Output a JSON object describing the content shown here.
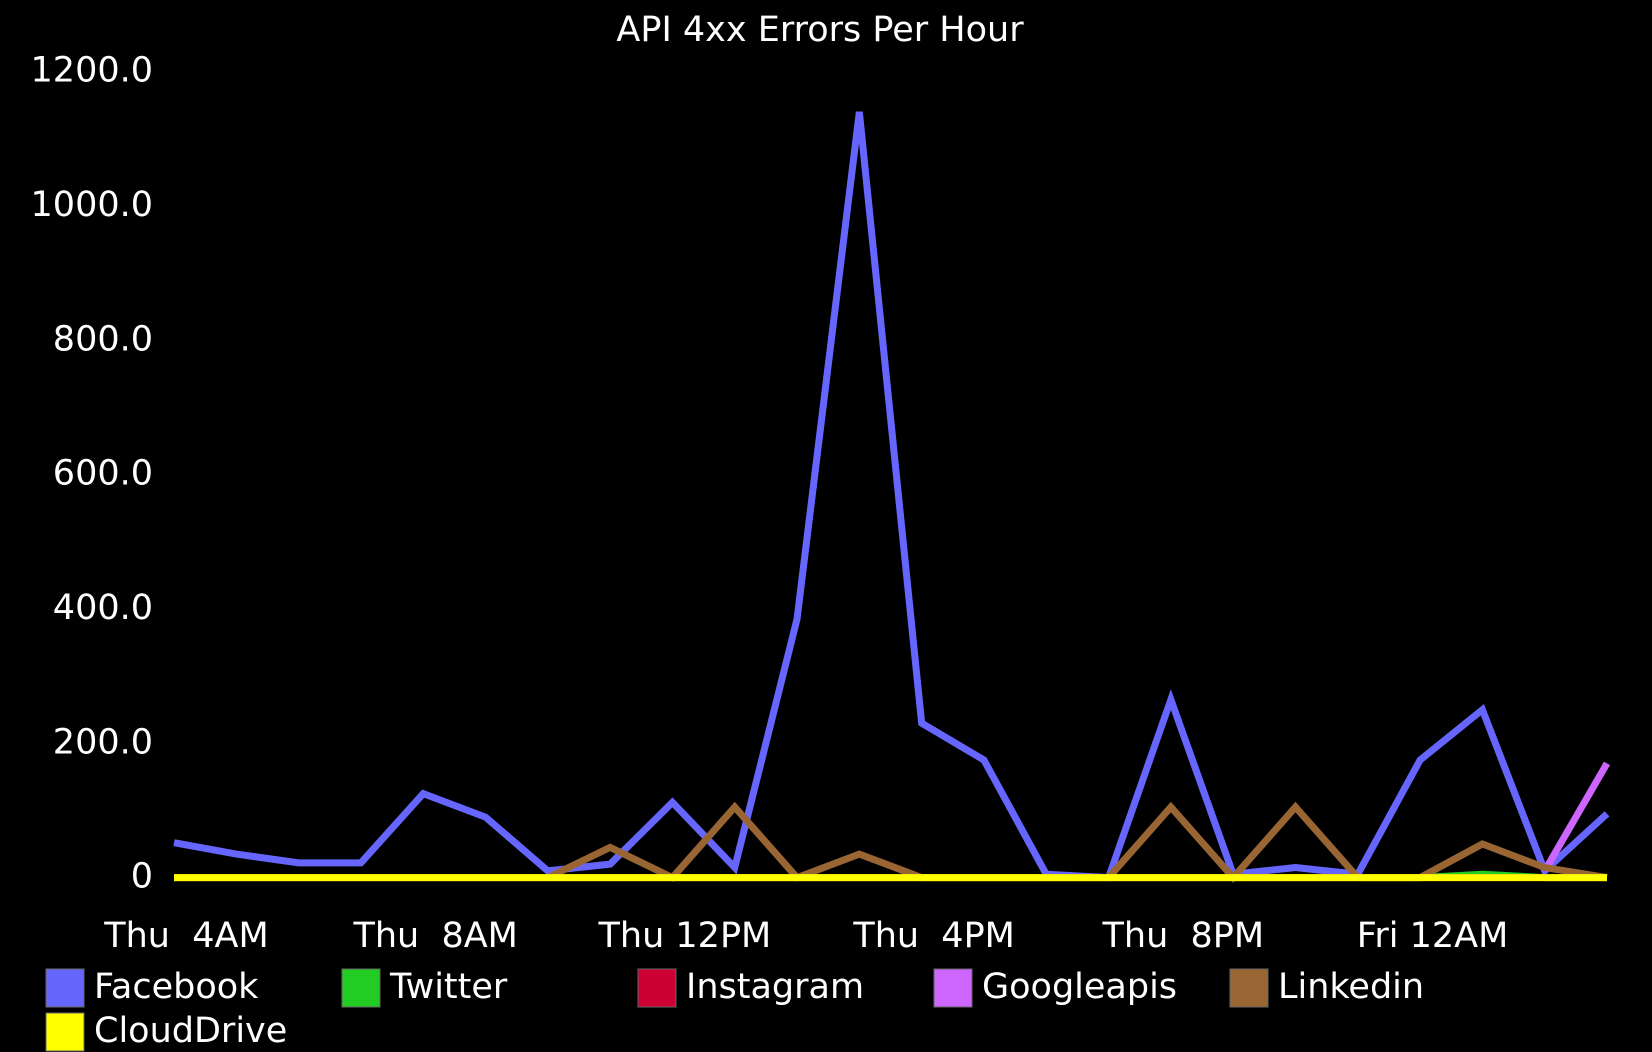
{
  "chart_data": {
    "type": "line",
    "title": "API 4xx Errors Per Hour",
    "x": [
      3.8,
      4.8,
      5.8,
      6.8,
      7.8,
      8.8,
      9.8,
      10.8,
      11.8,
      12.8,
      13.8,
      14.8,
      15.8,
      16.8,
      17.8,
      18.8,
      19.8,
      20.8,
      21.8,
      22.8,
      23.8,
      24.8,
      25.8,
      26.8
    ],
    "xlim": [
      3.8,
      26.8
    ],
    "xticks": [
      {
        "value": 4,
        "label": "Thu  4AM"
      },
      {
        "value": 8,
        "label": "Thu  8AM"
      },
      {
        "value": 12,
        "label": "Thu 12PM"
      },
      {
        "value": 16,
        "label": "Thu  4PM"
      },
      {
        "value": 20,
        "label": "Thu  8PM"
      },
      {
        "value": 24,
        "label": "Fri 12AM"
      }
    ],
    "ylim": [
      0,
      1200
    ],
    "yticks": [
      0,
      {
        "value": 200,
        "label": "200.0"
      },
      {
        "value": 400,
        "label": "400.0"
      },
      {
        "value": 600,
        "label": "600.0"
      },
      {
        "value": 800,
        "label": "800.0"
      },
      {
        "value": 1000,
        "label": "1000.0"
      },
      {
        "value": 1200,
        "label": "1200.0"
      }
    ],
    "series": [
      {
        "name": "Facebook",
        "color": "#6666ff",
        "values": [
          52,
          35,
          22,
          22,
          125,
          90,
          10,
          20,
          112,
          15,
          385,
          1140,
          230,
          175,
          5,
          0,
          265,
          5,
          15,
          5,
          175,
          250,
          10,
          95
        ]
      },
      {
        "name": "Twitter",
        "color": "#22cc22",
        "values": [
          0,
          0,
          0,
          0,
          0,
          0,
          0,
          0,
          0,
          0,
          0,
          0,
          0,
          0,
          0,
          0,
          0,
          0,
          0,
          0,
          0,
          5,
          0,
          0
        ]
      },
      {
        "name": "Instagram",
        "color": "#cc0033",
        "values": [
          0,
          0,
          0,
          0,
          0,
          0,
          0,
          0,
          0,
          0,
          0,
          0,
          0,
          0,
          0,
          0,
          0,
          0,
          0,
          0,
          0,
          0,
          0,
          0
        ]
      },
      {
        "name": "Googleapis",
        "color": "#cc66ff",
        "values": [
          null,
          null,
          null,
          null,
          null,
          null,
          null,
          null,
          null,
          null,
          null,
          null,
          null,
          null,
          null,
          null,
          null,
          null,
          null,
          null,
          null,
          null,
          10,
          170
        ]
      },
      {
        "name": "Linkedin",
        "color": "#996633",
        "values": [
          null,
          null,
          null,
          null,
          null,
          null,
          0,
          45,
          0,
          105,
          0,
          35,
          0,
          0,
          0,
          0,
          105,
          0,
          105,
          0,
          0,
          50,
          15,
          0
        ]
      },
      {
        "name": "CloudDrive",
        "color": "#ffff00",
        "values": [
          0,
          0,
          0,
          0,
          0,
          0,
          0,
          0,
          0,
          0,
          0,
          0,
          0,
          0,
          0,
          0,
          0,
          0,
          0,
          0,
          0,
          0,
          0,
          0
        ]
      }
    ]
  }
}
